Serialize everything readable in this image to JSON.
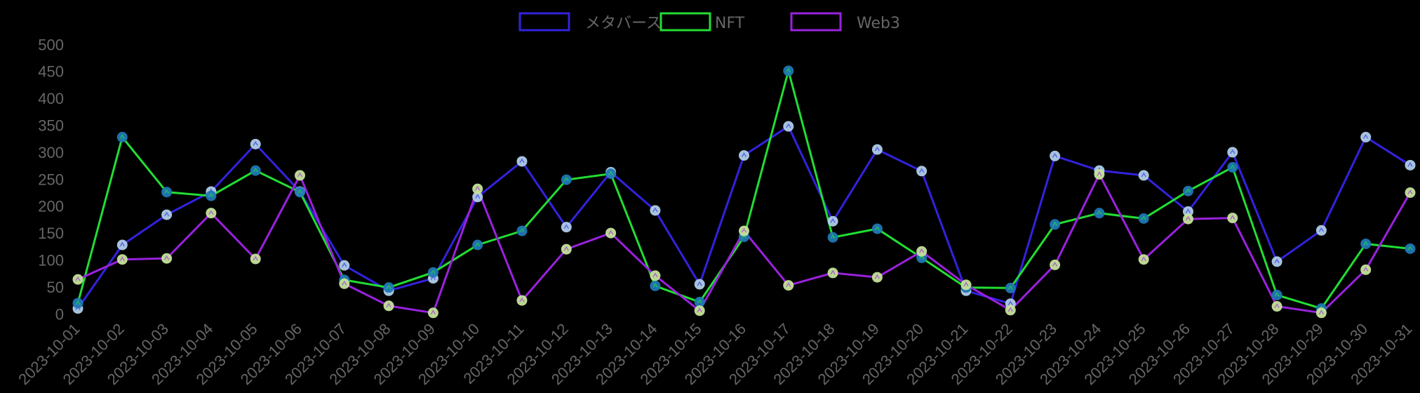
{
  "chart_data": {
    "type": "line",
    "title": "",
    "xlabel": "",
    "ylabel": "",
    "ylim": [
      0,
      500
    ],
    "yticks": [
      0,
      50,
      100,
      150,
      200,
      250,
      300,
      350,
      400,
      450,
      500
    ],
    "grid": false,
    "legend_position": "top-center",
    "categories": [
      "2023-10-01",
      "2023-10-02",
      "2023-10-03",
      "2023-10-04",
      "2023-10-05",
      "2023-10-06",
      "2023-10-07",
      "2023-10-08",
      "2023-10-09",
      "2023-10-10",
      "2023-10-11",
      "2023-10-12",
      "2023-10-13",
      "2023-10-14",
      "2023-10-15",
      "2023-10-16",
      "2023-10-17",
      "2023-10-18",
      "2023-10-19",
      "2023-10-20",
      "2023-10-21",
      "2023-10-22",
      "2023-10-23",
      "2023-10-24",
      "2023-10-25",
      "2023-10-26",
      "2023-10-27",
      "2023-10-28",
      "2023-10-29",
      "2023-10-30",
      "2023-10-31"
    ],
    "series": [
      {
        "name": "メタバース",
        "line_color": "#3322dd",
        "point_color": "#aecde8",
        "values": [
          10,
          128,
          184,
          227,
          315,
          227,
          90,
          43,
          66,
          217,
          283,
          161,
          263,
          192,
          55,
          294,
          348,
          172,
          305,
          265,
          43,
          19,
          293,
          266,
          257,
          190,
          300,
          97,
          155,
          328,
          276
        ]
      },
      {
        "name": "NFT",
        "line_color": "#22dd33",
        "point_color": "#1f77b4",
        "values": [
          20,
          328,
          226,
          219,
          266,
          226,
          63,
          49,
          77,
          128,
          154,
          249,
          260,
          52,
          22,
          143,
          451,
          142,
          158,
          104,
          49,
          48,
          166,
          187,
          177,
          228,
          272,
          35,
          10,
          130,
          121
        ]
      },
      {
        "name": "Web3",
        "line_color": "#9922dd",
        "point_color": "#c5e39a",
        "values": [
          64,
          101,
          103,
          187,
          102,
          257,
          56,
          15,
          2,
          232,
          25,
          120,
          150,
          71,
          6,
          154,
          53,
          76,
          68,
          116,
          54,
          7,
          91,
          259,
          101,
          176,
          178,
          14,
          2,
          82,
          225
        ]
      }
    ]
  },
  "legend": {
    "items": [
      {
        "label": "メタバース",
        "color": "#3322dd"
      },
      {
        "label": "NFT",
        "color": "#22dd33"
      },
      {
        "label": "Web3",
        "color": "#9922dd"
      }
    ]
  },
  "axis": {
    "label_color": "#666666"
  }
}
